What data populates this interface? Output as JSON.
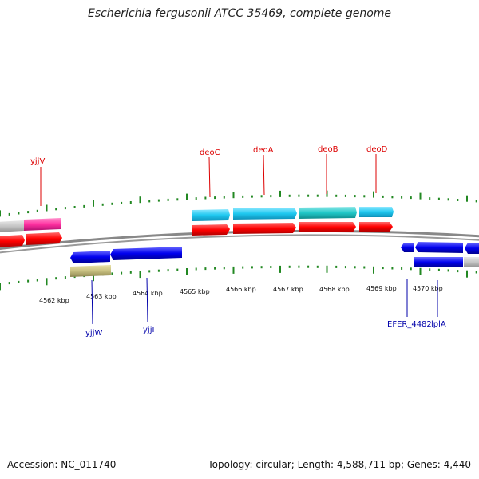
{
  "title": "Escherichia fergusonii ATCC 35469, complete genome",
  "footer": {
    "accession": "Accession: NC_011740",
    "summary": "Topology: circular; Length: 4,588,711 bp; Genes: 4,440"
  },
  "scale": {
    "tick_labels": [
      "4562 kbp",
      "4563 kbp",
      "4564 kbp",
      "4565 kbp",
      "4566 kbp",
      "4567 kbp",
      "4568 kbp",
      "4569 kbp",
      "4570 kbp"
    ]
  },
  "colors": {
    "forward_cds": "#ff0000",
    "forward_gene": "#1ec8f0",
    "forward_gene_alt": "#20c8c8",
    "reverse_cds": "#0000ee",
    "reverse_misc": "#c8c080",
    "other_gene": "#ff30a0",
    "backbone": "#808080",
    "tick": "#228822",
    "forward_label": "#dd0000",
    "reverse_label": "#0000aa"
  },
  "gene_labels": {
    "forward": [
      "yjjV",
      "deoC",
      "deoA",
      "deoB",
      "deoD"
    ],
    "reverse": [
      "yjjW",
      "yjjI",
      "EFER_4482",
      "lplA"
    ]
  }
}
